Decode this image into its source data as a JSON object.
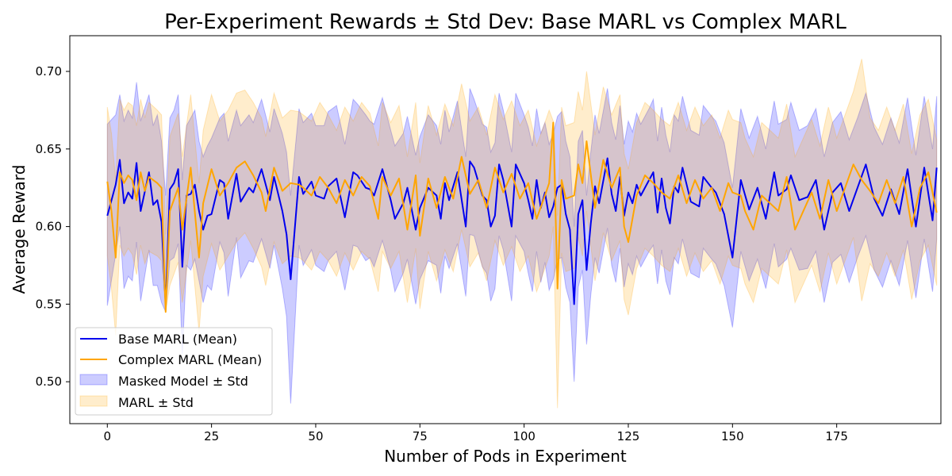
{
  "chart_data": {
    "type": "line",
    "title": "Per-Experiment Rewards ± Std Dev: Base MARL vs Complex MARL",
    "xlabel": "Number of Pods in Experiment",
    "ylabel": "Average Reward",
    "xlim": [
      -9,
      200
    ],
    "ylim": [
      0.473,
      0.723
    ],
    "x_ticks": [
      0,
      25,
      50,
      75,
      100,
      125,
      150,
      175
    ],
    "y_ticks": [
      0.5,
      0.55,
      0.6,
      0.65,
      0.7
    ],
    "y_tick_labels": [
      "0.50",
      "0.55",
      "0.60",
      "0.65",
      "0.70"
    ],
    "grid": false,
    "legend_position": "lower-left",
    "legend": [
      {
        "label": "Base MARL (Mean)",
        "kind": "line",
        "color": "#0000ee"
      },
      {
        "label": "Complex MARL (Mean)",
        "kind": "line",
        "color": "#ffa500"
      },
      {
        "label": "Masked Model ± Std",
        "kind": "band",
        "color": "#0000ff"
      },
      {
        "label": "MARL ± Std",
        "kind": "band",
        "color": "#ffa500"
      }
    ],
    "series": [
      {
        "name": "Base MARL (Mean)",
        "color": "#0000ee",
        "band_color": "#0000ff",
        "x": [
          0,
          2,
          3,
          4,
          5,
          6,
          7,
          8,
          10,
          11,
          12,
          13,
          14,
          15,
          16,
          17,
          18,
          19,
          20,
          21,
          22,
          23,
          24,
          25,
          27,
          28,
          29,
          31,
          32,
          34,
          35,
          37,
          39,
          40,
          42,
          43,
          44,
          46,
          47,
          49,
          50,
          52,
          53,
          55,
          57,
          59,
          60,
          62,
          63,
          64,
          66,
          68,
          69,
          71,
          72,
          74,
          75,
          77,
          79,
          80,
          81,
          82,
          84,
          86,
          87,
          88,
          90,
          91,
          92,
          93,
          94,
          95,
          97,
          98,
          100,
          101,
          102,
          103,
          104,
          105,
          106,
          107,
          108,
          109,
          110,
          111,
          112,
          113,
          114,
          115,
          116,
          117,
          118,
          120,
          121,
          122,
          123,
          124,
          125,
          126,
          127,
          128,
          130,
          131,
          132,
          133,
          134,
          135,
          136,
          137,
          138,
          140,
          142,
          143,
          145,
          146,
          148,
          150,
          152,
          154,
          156,
          158,
          160,
          161,
          163,
          164,
          166,
          168,
          170,
          172,
          174,
          176,
          178,
          180,
          182,
          184,
          186,
          188,
          190,
          192,
          194,
          196,
          198,
          199
        ],
        "mean": [
          0.607,
          0.627,
          0.643,
          0.615,
          0.622,
          0.618,
          0.641,
          0.61,
          0.635,
          0.614,
          0.617,
          0.603,
          0.55,
          0.624,
          0.628,
          0.637,
          0.574,
          0.62,
          0.621,
          0.627,
          0.61,
          0.598,
          0.607,
          0.608,
          0.63,
          0.628,
          0.605,
          0.634,
          0.616,
          0.625,
          0.622,
          0.637,
          0.617,
          0.632,
          0.61,
          0.595,
          0.566,
          0.632,
          0.621,
          0.629,
          0.62,
          0.618,
          0.626,
          0.631,
          0.606,
          0.635,
          0.633,
          0.625,
          0.624,
          0.62,
          0.637,
          0.617,
          0.605,
          0.615,
          0.625,
          0.598,
          0.612,
          0.625,
          0.62,
          0.605,
          0.628,
          0.617,
          0.635,
          0.6,
          0.642,
          0.638,
          0.62,
          0.617,
          0.6,
          0.607,
          0.64,
          0.63,
          0.6,
          0.64,
          0.628,
          0.617,
          0.605,
          0.63,
          0.612,
          0.622,
          0.606,
          0.613,
          0.625,
          0.627,
          0.608,
          0.598,
          0.55,
          0.608,
          0.617,
          0.572,
          0.602,
          0.626,
          0.615,
          0.644,
          0.621,
          0.61,
          0.632,
          0.607,
          0.622,
          0.615,
          0.627,
          0.62,
          0.63,
          0.635,
          0.609,
          0.631,
          0.612,
          0.602,
          0.626,
          0.622,
          0.638,
          0.616,
          0.613,
          0.632,
          0.625,
          0.622,
          0.608,
          0.58,
          0.63,
          0.611,
          0.625,
          0.605,
          0.635,
          0.62,
          0.624,
          0.633,
          0.617,
          0.619,
          0.63,
          0.598,
          0.622,
          0.628,
          0.61,
          0.625,
          0.64,
          0.618,
          0.607,
          0.624,
          0.608,
          0.637,
          0.6,
          0.638,
          0.604,
          0.638
        ],
        "upper": [
          0.666,
          0.672,
          0.685,
          0.668,
          0.675,
          0.67,
          0.693,
          0.668,
          0.685,
          0.665,
          0.672,
          0.655,
          0.62,
          0.67,
          0.675,
          0.685,
          0.63,
          0.665,
          0.67,
          0.675,
          0.655,
          0.645,
          0.652,
          0.657,
          0.67,
          0.673,
          0.655,
          0.675,
          0.665,
          0.672,
          0.667,
          0.682,
          0.661,
          0.676,
          0.66,
          0.648,
          0.62,
          0.676,
          0.667,
          0.673,
          0.665,
          0.665,
          0.674,
          0.678,
          0.653,
          0.682,
          0.679,
          0.672,
          0.668,
          0.666,
          0.683,
          0.662,
          0.652,
          0.66,
          0.671,
          0.646,
          0.658,
          0.672,
          0.665,
          0.653,
          0.675,
          0.661,
          0.681,
          0.645,
          0.689,
          0.682,
          0.666,
          0.664,
          0.648,
          0.654,
          0.686,
          0.675,
          0.648,
          0.686,
          0.672,
          0.664,
          0.652,
          0.676,
          0.66,
          0.667,
          0.653,
          0.66,
          0.671,
          0.674,
          0.655,
          0.645,
          0.6,
          0.655,
          0.662,
          0.62,
          0.648,
          0.672,
          0.66,
          0.689,
          0.667,
          0.656,
          0.678,
          0.653,
          0.668,
          0.661,
          0.673,
          0.666,
          0.676,
          0.682,
          0.655,
          0.677,
          0.659,
          0.648,
          0.672,
          0.668,
          0.684,
          0.662,
          0.659,
          0.678,
          0.671,
          0.668,
          0.654,
          0.625,
          0.676,
          0.657,
          0.671,
          0.65,
          0.681,
          0.666,
          0.669,
          0.68,
          0.662,
          0.665,
          0.676,
          0.645,
          0.667,
          0.674,
          0.656,
          0.67,
          0.686,
          0.664,
          0.653,
          0.67,
          0.654,
          0.683,
          0.646,
          0.684,
          0.65,
          0.684
        ],
        "lower": [
          0.549,
          0.582,
          0.6,
          0.56,
          0.568,
          0.565,
          0.59,
          0.552,
          0.585,
          0.562,
          0.562,
          0.551,
          0.545,
          0.578,
          0.58,
          0.589,
          0.518,
          0.575,
          0.572,
          0.579,
          0.565,
          0.551,
          0.562,
          0.559,
          0.59,
          0.583,
          0.555,
          0.593,
          0.567,
          0.578,
          0.577,
          0.592,
          0.573,
          0.588,
          0.56,
          0.542,
          0.486,
          0.588,
          0.575,
          0.585,
          0.575,
          0.571,
          0.578,
          0.584,
          0.559,
          0.588,
          0.587,
          0.578,
          0.58,
          0.574,
          0.591,
          0.572,
          0.558,
          0.57,
          0.579,
          0.55,
          0.566,
          0.578,
          0.575,
          0.557,
          0.581,
          0.573,
          0.589,
          0.555,
          0.595,
          0.594,
          0.574,
          0.57,
          0.552,
          0.56,
          0.594,
          0.585,
          0.552,
          0.594,
          0.584,
          0.57,
          0.558,
          0.584,
          0.564,
          0.577,
          0.559,
          0.566,
          0.579,
          0.58,
          0.561,
          0.551,
          0.5,
          0.561,
          0.572,
          0.524,
          0.556,
          0.58,
          0.57,
          0.599,
          0.575,
          0.564,
          0.586,
          0.561,
          0.576,
          0.569,
          0.581,
          0.574,
          0.584,
          0.588,
          0.563,
          0.585,
          0.565,
          0.556,
          0.58,
          0.576,
          0.592,
          0.57,
          0.567,
          0.586,
          0.579,
          0.576,
          0.562,
          0.535,
          0.584,
          0.565,
          0.579,
          0.56,
          0.589,
          0.574,
          0.579,
          0.586,
          0.572,
          0.573,
          0.584,
          0.551,
          0.577,
          0.582,
          0.564,
          0.58,
          0.594,
          0.572,
          0.561,
          0.578,
          0.562,
          0.591,
          0.554,
          0.592,
          0.558,
          0.592
        ]
      },
      {
        "name": "Complex MARL (Mean)",
        "color": "#ffa500",
        "band_color": "#ffa500",
        "x": [
          0,
          1,
          2,
          3,
          4,
          5,
          6,
          7,
          8,
          9,
          10,
          12,
          13,
          14,
          15,
          17,
          18,
          19,
          20,
          22,
          23,
          25,
          27,
          29,
          31,
          33,
          35,
          37,
          38,
          40,
          42,
          44,
          46,
          47,
          49,
          51,
          53,
          55,
          57,
          59,
          61,
          63,
          65,
          66,
          68,
          70,
          72,
          74,
          75,
          77,
          79,
          81,
          83,
          85,
          87,
          89,
          91,
          93,
          95,
          97,
          99,
          101,
          103,
          105,
          106,
          107,
          108,
          109,
          110,
          112,
          113,
          114,
          115,
          117,
          119,
          121,
          123,
          124,
          125,
          127,
          129,
          131,
          133,
          135,
          137,
          139,
          141,
          143,
          145,
          147,
          149,
          150,
          152,
          153,
          155,
          157,
          159,
          161,
          163,
          165,
          167,
          169,
          171,
          173,
          175,
          177,
          179,
          181,
          183,
          185,
          187,
          189,
          191,
          193,
          195,
          197,
          199
        ],
        "mean": [
          0.629,
          0.61,
          0.58,
          0.635,
          0.628,
          0.633,
          0.63,
          0.617,
          0.635,
          0.623,
          0.632,
          0.628,
          0.625,
          0.545,
          0.61,
          0.625,
          0.598,
          0.618,
          0.638,
          0.58,
          0.615,
          0.637,
          0.62,
          0.628,
          0.638,
          0.642,
          0.633,
          0.622,
          0.61,
          0.638,
          0.623,
          0.628,
          0.627,
          0.625,
          0.62,
          0.632,
          0.625,
          0.615,
          0.63,
          0.62,
          0.632,
          0.626,
          0.605,
          0.632,
          0.62,
          0.631,
          0.598,
          0.633,
          0.594,
          0.631,
          0.612,
          0.632,
          0.618,
          0.645,
          0.621,
          0.63,
          0.612,
          0.638,
          0.622,
          0.634,
          0.618,
          0.628,
          0.605,
          0.62,
          0.628,
          0.667,
          0.56,
          0.63,
          0.618,
          0.62,
          0.64,
          0.628,
          0.655,
          0.612,
          0.643,
          0.625,
          0.638,
          0.6,
          0.59,
          0.62,
          0.633,
          0.628,
          0.622,
          0.618,
          0.633,
          0.615,
          0.63,
          0.618,
          0.625,
          0.61,
          0.628,
          0.622,
          0.62,
          0.61,
          0.598,
          0.62,
          0.615,
          0.61,
          0.632,
          0.598,
          0.61,
          0.622,
          0.605,
          0.63,
          0.61,
          0.625,
          0.64,
          0.63,
          0.623,
          0.615,
          0.63,
          0.615,
          0.632,
          0.6,
          0.625,
          0.635,
          0.609
        ],
        "upper": [
          0.677,
          0.66,
          0.63,
          0.682,
          0.675,
          0.68,
          0.678,
          0.665,
          0.682,
          0.67,
          0.68,
          0.675,
          0.672,
          0.595,
          0.658,
          0.673,
          0.645,
          0.665,
          0.685,
          0.628,
          0.662,
          0.685,
          0.668,
          0.675,
          0.686,
          0.688,
          0.68,
          0.67,
          0.658,
          0.686,
          0.67,
          0.675,
          0.674,
          0.672,
          0.668,
          0.68,
          0.672,
          0.662,
          0.677,
          0.668,
          0.68,
          0.673,
          0.652,
          0.68,
          0.667,
          0.678,
          0.645,
          0.68,
          0.641,
          0.678,
          0.659,
          0.679,
          0.665,
          0.692,
          0.668,
          0.677,
          0.659,
          0.685,
          0.669,
          0.681,
          0.665,
          0.675,
          0.652,
          0.667,
          0.675,
          0.668,
          0.607,
          0.677,
          0.665,
          0.667,
          0.687,
          0.675,
          0.7,
          0.659,
          0.69,
          0.672,
          0.685,
          0.647,
          0.637,
          0.667,
          0.68,
          0.675,
          0.669,
          0.665,
          0.68,
          0.662,
          0.677,
          0.665,
          0.672,
          0.657,
          0.675,
          0.669,
          0.667,
          0.657,
          0.645,
          0.667,
          0.662,
          0.657,
          0.679,
          0.645,
          0.657,
          0.669,
          0.652,
          0.677,
          0.657,
          0.672,
          0.687,
          0.708,
          0.67,
          0.662,
          0.677,
          0.662,
          0.679,
          0.647,
          0.672,
          0.682,
          0.656
        ],
        "lower": [
          0.581,
          0.56,
          0.53,
          0.588,
          0.581,
          0.586,
          0.582,
          0.569,
          0.588,
          0.576,
          0.584,
          0.581,
          0.578,
          0.545,
          0.562,
          0.577,
          0.551,
          0.571,
          0.591,
          0.532,
          0.568,
          0.589,
          0.572,
          0.581,
          0.59,
          0.596,
          0.586,
          0.574,
          0.562,
          0.59,
          0.576,
          0.581,
          0.58,
          0.578,
          0.572,
          0.584,
          0.578,
          0.568,
          0.583,
          0.572,
          0.584,
          0.579,
          0.558,
          0.584,
          0.573,
          0.584,
          0.551,
          0.586,
          0.547,
          0.584,
          0.565,
          0.585,
          0.571,
          0.598,
          0.574,
          0.583,
          0.565,
          0.591,
          0.575,
          0.587,
          0.571,
          0.581,
          0.558,
          0.573,
          0.581,
          0.6,
          0.483,
          0.583,
          0.571,
          0.573,
          0.593,
          0.581,
          0.61,
          0.565,
          0.596,
          0.578,
          0.591,
          0.553,
          0.543,
          0.573,
          0.586,
          0.581,
          0.575,
          0.571,
          0.586,
          0.568,
          0.583,
          0.571,
          0.578,
          0.563,
          0.581,
          0.575,
          0.573,
          0.563,
          0.551,
          0.573,
          0.568,
          0.563,
          0.585,
          0.551,
          0.563,
          0.575,
          0.558,
          0.583,
          0.563,
          0.578,
          0.593,
          0.552,
          0.576,
          0.568,
          0.583,
          0.568,
          0.585,
          0.553,
          0.578,
          0.588,
          0.562
        ]
      }
    ]
  }
}
